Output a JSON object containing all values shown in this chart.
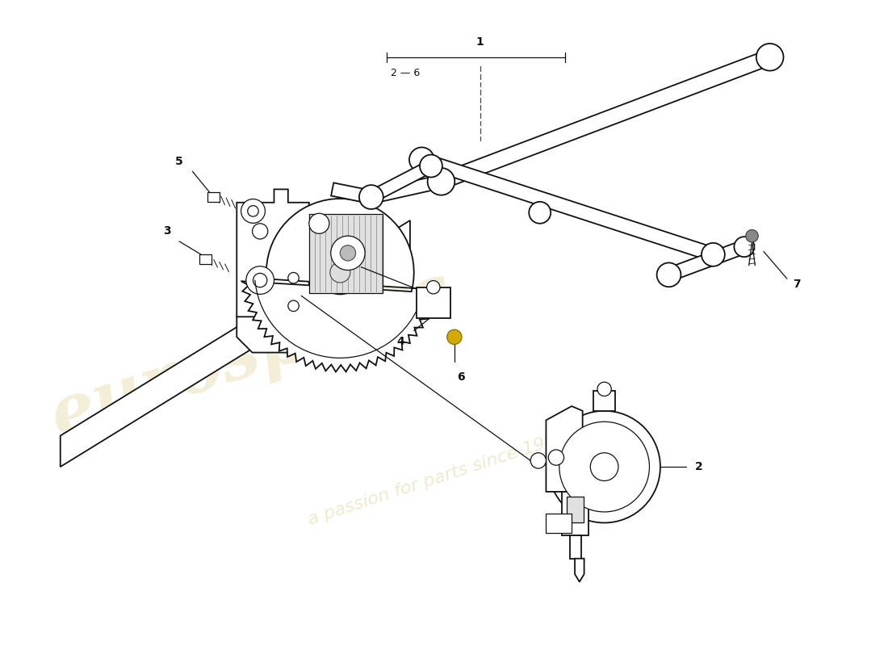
{
  "bg_color": "#ffffff",
  "line_color": "#111111",
  "wm_color": "#c8b448",
  "figsize": [
    11.0,
    8.0
  ],
  "dpi": 100,
  "xlim": [
    0,
    11
  ],
  "ylim": [
    0,
    8
  ]
}
